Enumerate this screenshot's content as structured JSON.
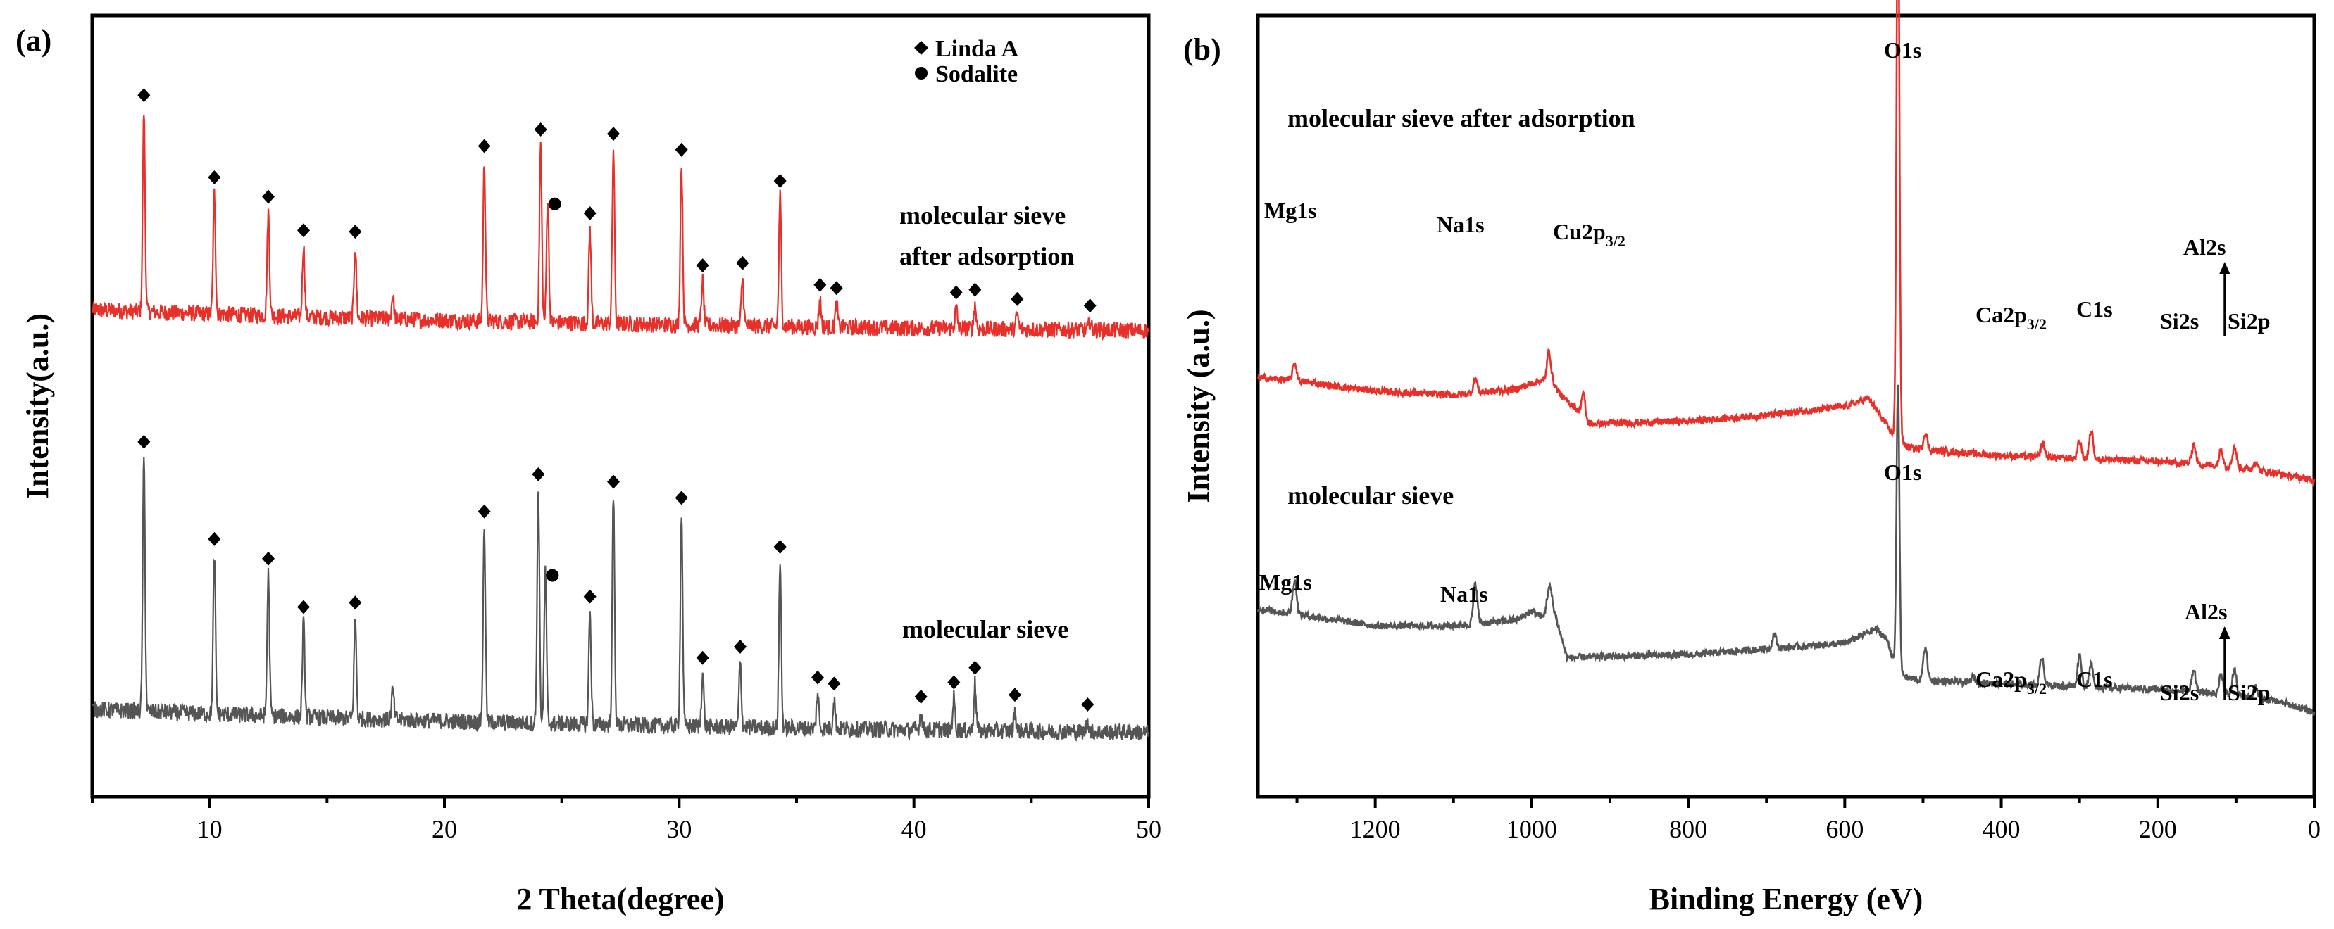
{
  "panels": [
    {
      "id": "a",
      "letter": "(a)",
      "xlabel": "2 Theta(degree)",
      "ylabel": "Intensity(a.u.)",
      "legend": {
        "items": [
          {
            "label": "Linda A",
            "marker": "diamond"
          },
          {
            "label": "Sodalite",
            "marker": "circle"
          }
        ],
        "placement": "top-right"
      },
      "annotations": [
        {
          "lines": [
            "molecular sieve",
            "after adsorption"
          ],
          "series": "after adsorption"
        },
        {
          "lines": [
            "molecular sieve"
          ],
          "series": "before"
        }
      ]
    },
    {
      "id": "b",
      "letter": "(b)",
      "xlabel": "Binding Energy (eV)",
      "ylabel": "Intensity (a.u.)",
      "annotations": [
        {
          "lines": [
            "molecular sieve after adsorption"
          ],
          "series": "after adsorption"
        },
        {
          "lines": [
            "molecular sieve"
          ],
          "series": "before"
        }
      ]
    }
  ],
  "chart_data": [
    {
      "type": "line",
      "panel": "a",
      "xlim": [
        5,
        50
      ],
      "x_ticks": [
        10,
        20,
        30,
        40,
        50
      ],
      "y_ticks_shown": false,
      "series": [
        {
          "name": "molecular sieve after adsorption",
          "color": "#e8302b",
          "baseline": 0.45,
          "peaks": [
            {
              "x": 7.2,
              "h": 3.4
            },
            {
              "x": 10.2,
              "h": 2.05
            },
            {
              "x": 12.5,
              "h": 1.75
            },
            {
              "x": 14.0,
              "h": 1.2
            },
            {
              "x": 16.2,
              "h": 1.2
            },
            {
              "x": 17.8,
              "h": 0.4
            },
            {
              "x": 21.7,
              "h": 2.7
            },
            {
              "x": 24.1,
              "h": 3.0
            },
            {
              "x": 24.4,
              "h": 2.1
            },
            {
              "x": 26.2,
              "h": 1.6
            },
            {
              "x": 27.2,
              "h": 2.95
            },
            {
              "x": 30.1,
              "h": 2.7
            },
            {
              "x": 31.0,
              "h": 0.75
            },
            {
              "x": 32.7,
              "h": 0.8
            },
            {
              "x": 34.3,
              "h": 2.2
            },
            {
              "x": 36.0,
              "h": 0.45
            },
            {
              "x": 36.7,
              "h": 0.4
            },
            {
              "x": 41.8,
              "h": 0.35
            },
            {
              "x": 42.6,
              "h": 0.4
            },
            {
              "x": 44.4,
              "h": 0.25
            },
            {
              "x": 47.5,
              "h": 0.15
            }
          ]
        },
        {
          "name": "molecular sieve",
          "color": "#555555",
          "baseline": 0.5,
          "peaks": [
            {
              "x": 7.2,
              "h": 4.3
            },
            {
              "x": 10.2,
              "h": 2.7
            },
            {
              "x": 12.5,
              "h": 2.4
            },
            {
              "x": 14.0,
              "h": 1.6
            },
            {
              "x": 16.2,
              "h": 1.7
            },
            {
              "x": 17.8,
              "h": 0.5
            },
            {
              "x": 21.7,
              "h": 3.3
            },
            {
              "x": 24.0,
              "h": 3.95
            },
            {
              "x": 24.3,
              "h": 2.6
            },
            {
              "x": 26.2,
              "h": 1.9
            },
            {
              "x": 27.2,
              "h": 3.85
            },
            {
              "x": 30.1,
              "h": 3.6
            },
            {
              "x": 31.0,
              "h": 0.9
            },
            {
              "x": 32.6,
              "h": 1.1
            },
            {
              "x": 34.3,
              "h": 2.8
            },
            {
              "x": 35.9,
              "h": 0.6
            },
            {
              "x": 36.6,
              "h": 0.5
            },
            {
              "x": 40.3,
              "h": 0.3
            },
            {
              "x": 41.7,
              "h": 0.55
            },
            {
              "x": 42.6,
              "h": 0.8
            },
            {
              "x": 44.3,
              "h": 0.35
            },
            {
              "x": 47.4,
              "h": 0.2
            }
          ]
        }
      ],
      "markers": [
        {
          "series": 0,
          "x": 7.2,
          "type": "diamond"
        },
        {
          "series": 0,
          "x": 10.2,
          "type": "diamond"
        },
        {
          "series": 0,
          "x": 12.5,
          "type": "diamond"
        },
        {
          "series": 0,
          "x": 14.0,
          "type": "diamond"
        },
        {
          "series": 0,
          "x": 16.2,
          "type": "diamond"
        },
        {
          "series": 0,
          "x": 21.7,
          "type": "diamond"
        },
        {
          "series": 0,
          "x": 24.1,
          "type": "diamond"
        },
        {
          "series": 0,
          "x": 24.4,
          "type": "circle"
        },
        {
          "series": 0,
          "x": 26.2,
          "type": "diamond"
        },
        {
          "series": 0,
          "x": 27.2,
          "type": "diamond"
        },
        {
          "series": 0,
          "x": 30.1,
          "type": "diamond"
        },
        {
          "series": 0,
          "x": 31.0,
          "type": "diamond"
        },
        {
          "series": 0,
          "x": 32.7,
          "type": "diamond"
        },
        {
          "series": 0,
          "x": 34.3,
          "type": "diamond"
        },
        {
          "series": 0,
          "x": 36.0,
          "type": "diamond"
        },
        {
          "series": 0,
          "x": 36.7,
          "type": "diamond"
        },
        {
          "series": 0,
          "x": 41.8,
          "type": "diamond"
        },
        {
          "series": 0,
          "x": 42.6,
          "type": "diamond"
        },
        {
          "series": 0,
          "x": 44.4,
          "type": "diamond"
        },
        {
          "series": 0,
          "x": 47.5,
          "type": "diamond"
        },
        {
          "series": 1,
          "x": 7.2,
          "type": "diamond"
        },
        {
          "series": 1,
          "x": 10.2,
          "type": "diamond"
        },
        {
          "series": 1,
          "x": 12.5,
          "type": "diamond"
        },
        {
          "series": 1,
          "x": 14.0,
          "type": "diamond"
        },
        {
          "series": 1,
          "x": 16.2,
          "type": "diamond"
        },
        {
          "series": 1,
          "x": 21.7,
          "type": "diamond"
        },
        {
          "series": 1,
          "x": 24.0,
          "type": "diamond"
        },
        {
          "series": 1,
          "x": 24.3,
          "type": "circle"
        },
        {
          "series": 1,
          "x": 26.2,
          "type": "diamond"
        },
        {
          "series": 1,
          "x": 27.2,
          "type": "diamond"
        },
        {
          "series": 1,
          "x": 30.1,
          "type": "diamond"
        },
        {
          "series": 1,
          "x": 31.0,
          "type": "diamond"
        },
        {
          "series": 1,
          "x": 32.6,
          "type": "diamond"
        },
        {
          "series": 1,
          "x": 34.3,
          "type": "diamond"
        },
        {
          "series": 1,
          "x": 35.9,
          "type": "diamond"
        },
        {
          "series": 1,
          "x": 36.6,
          "type": "diamond"
        },
        {
          "series": 1,
          "x": 40.3,
          "type": "diamond"
        },
        {
          "series": 1,
          "x": 41.7,
          "type": "diamond"
        },
        {
          "series": 1,
          "x": 42.6,
          "type": "diamond"
        },
        {
          "series": 1,
          "x": 44.3,
          "type": "diamond"
        },
        {
          "series": 1,
          "x": 47.4,
          "type": "diamond"
        }
      ]
    },
    {
      "type": "line",
      "panel": "b",
      "xlim": [
        1350,
        0
      ],
      "x_ticks": [
        1200,
        1000,
        800,
        600,
        400,
        200,
        0
      ],
      "y_ticks_shown": false,
      "series": [
        {
          "name": "molecular sieve after adsorption",
          "color": "#e8302b",
          "profile": [
            [
              1350,
              5.65
            ],
            [
              1300,
              5.6
            ],
            [
              1250,
              5.5
            ],
            [
              1200,
              5.42
            ],
            [
              1100,
              5.35
            ],
            [
              1020,
              5.45
            ],
            [
              990,
              5.6
            ],
            [
              975,
              5.6
            ],
            [
              960,
              5.3
            ],
            [
              945,
              5.15
            ],
            [
              930,
              4.85
            ],
            [
              900,
              4.86
            ],
            [
              800,
              4.9
            ],
            [
              700,
              5.0
            ],
            [
              600,
              5.15
            ],
            [
              570,
              5.3
            ],
            [
              555,
              5.0
            ],
            [
              540,
              4.7
            ],
            [
              520,
              4.45
            ],
            [
              500,
              4.4
            ],
            [
              400,
              4.3
            ],
            [
              300,
              4.25
            ],
            [
              200,
              4.2
            ],
            [
              100,
              4.1
            ],
            [
              50,
              4.0
            ],
            [
              10,
              3.9
            ],
            [
              0,
              3.85
            ]
          ],
          "peaks": [
            {
              "x": 1303,
              "h": 0.3
            },
            {
              "x": 1072,
              "h": 0.25
            },
            {
              "x": 978,
              "h": 0.5
            },
            {
              "x": 934,
              "h": 0.45
            },
            {
              "x": 532,
              "h": 10.0
            },
            {
              "x": 497,
              "h": 0.3
            },
            {
              "x": 347,
              "h": 0.25
            },
            {
              "x": 300,
              "h": 0.3
            },
            {
              "x": 285,
              "h": 0.5
            },
            {
              "x": 154,
              "h": 0.35
            },
            {
              "x": 119,
              "h": 0.3
            },
            {
              "x": 102,
              "h": 0.35
            },
            {
              "x": 75,
              "h": 0.15
            }
          ]
        },
        {
          "name": "molecular sieve",
          "color": "#555555",
          "profile": [
            [
              1350,
              1.65
            ],
            [
              1300,
              1.55
            ],
            [
              1250,
              1.45
            ],
            [
              1200,
              1.35
            ],
            [
              1100,
              1.35
            ],
            [
              1020,
              1.45
            ],
            [
              1000,
              1.6
            ],
            [
              985,
              1.5
            ],
            [
              975,
              1.8
            ],
            [
              965,
              1.3
            ],
            [
              955,
              0.8
            ],
            [
              900,
              0.82
            ],
            [
              800,
              0.85
            ],
            [
              700,
              0.95
            ],
            [
              600,
              1.05
            ],
            [
              560,
              1.3
            ],
            [
              545,
              1.1
            ],
            [
              535,
              0.6
            ],
            [
              520,
              0.45
            ],
            [
              500,
              0.4
            ],
            [
              400,
              0.35
            ],
            [
              300,
              0.3
            ],
            [
              200,
              0.25
            ],
            [
              100,
              0.15
            ],
            [
              50,
              0.05
            ],
            [
              10,
              -0.1
            ],
            [
              0,
              -0.15
            ]
          ],
          "peaks": [
            {
              "x": 1303,
              "h": 0.6
            },
            {
              "x": 1072,
              "h": 0.7
            },
            {
              "x": 978,
              "h": 0.3
            },
            {
              "x": 690,
              "h": 0.25
            },
            {
              "x": 532,
              "h": 5.0
            },
            {
              "x": 497,
              "h": 0.6
            },
            {
              "x": 436,
              "h": 0.1
            },
            {
              "x": 348,
              "h": 0.5
            },
            {
              "x": 300,
              "h": 0.55
            },
            {
              "x": 285,
              "h": 0.4
            },
            {
              "x": 154,
              "h": 0.4
            },
            {
              "x": 119,
              "h": 0.35
            },
            {
              "x": 102,
              "h": 0.45
            },
            {
              "x": 75,
              "h": 0.2
            }
          ]
        }
      ],
      "peak_labels": [
        {
          "series": 0,
          "label": "O1s",
          "x": 532
        },
        {
          "series": 0,
          "label": "Mg1s",
          "x": 1303
        },
        {
          "series": 0,
          "label": "Na1s",
          "x": 1072
        },
        {
          "series": 0,
          "label": "Cu2p",
          "sub": "3/2",
          "x": 934
        },
        {
          "series": 0,
          "label": "Ca2p",
          "sub": "3/2",
          "x": 347
        },
        {
          "series": 0,
          "label": "C1s",
          "x": 285
        },
        {
          "series": 0,
          "label": "Al2s",
          "x": 119,
          "arrow": true
        },
        {
          "series": 0,
          "label": "Si2s",
          "x": 154
        },
        {
          "series": 0,
          "label": "Si2p",
          "x": 102
        },
        {
          "series": 1,
          "label": "O1s",
          "x": 532
        },
        {
          "series": 1,
          "label": "Mg1s",
          "x": 1303
        },
        {
          "series": 1,
          "label": "Na1s",
          "x": 1072
        },
        {
          "series": 1,
          "label": "Ca2p",
          "sub": "3/2",
          "x": 348
        },
        {
          "series": 1,
          "label": "C1s",
          "x": 300
        },
        {
          "series": 1,
          "label": "Al2s",
          "x": 119,
          "arrow": true
        },
        {
          "series": 1,
          "label": "Si2s",
          "x": 154
        },
        {
          "series": 1,
          "label": "Si2p",
          "x": 102
        }
      ]
    }
  ]
}
